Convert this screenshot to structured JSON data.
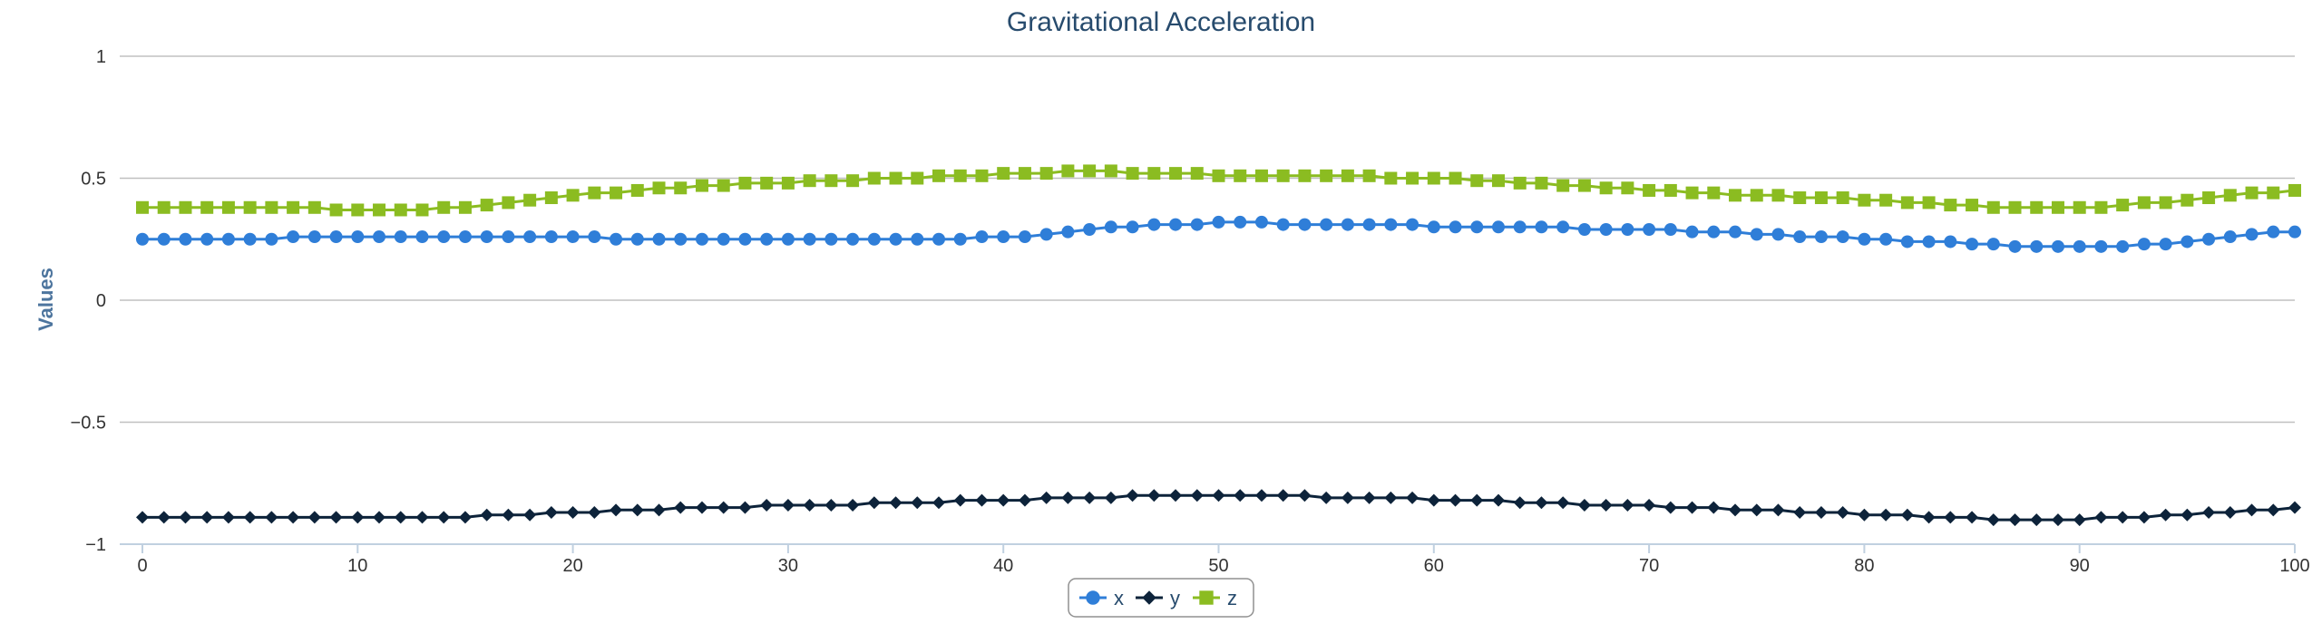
{
  "chart_data": {
    "type": "line",
    "title": "Gravitational Acceleration",
    "ylabel": "Values",
    "xlabel": "",
    "xlim": [
      0,
      100
    ],
    "ylim": [
      -1,
      1
    ],
    "yticks": [
      "1",
      "0.5",
      "0",
      "−0.5",
      "−1"
    ],
    "ytick_values": [
      1,
      0.5,
      0,
      -0.5,
      -1
    ],
    "xticks": [
      "0",
      "10",
      "20",
      "30",
      "40",
      "50",
      "60",
      "70",
      "80",
      "90",
      "100"
    ],
    "xtick_values": [
      0,
      10,
      20,
      30,
      40,
      50,
      60,
      70,
      80,
      90,
      100
    ],
    "grid": "horizontal",
    "legend_position": "bottom-center",
    "x": [
      0,
      1,
      2,
      3,
      4,
      5,
      6,
      7,
      8,
      9,
      10,
      11,
      12,
      13,
      14,
      15,
      16,
      17,
      18,
      19,
      20,
      21,
      22,
      23,
      24,
      25,
      26,
      27,
      28,
      29,
      30,
      31,
      32,
      33,
      34,
      35,
      36,
      37,
      38,
      39,
      40,
      41,
      42,
      43,
      44,
      45,
      46,
      47,
      48,
      49,
      50,
      51,
      52,
      53,
      54,
      55,
      56,
      57,
      58,
      59,
      60,
      61,
      62,
      63,
      64,
      65,
      66,
      67,
      68,
      69,
      70,
      71,
      72,
      73,
      74,
      75,
      76,
      77,
      78,
      79,
      80,
      81,
      82,
      83,
      84,
      85,
      86,
      87,
      88,
      89,
      90,
      91,
      92,
      93,
      94,
      95,
      96,
      97,
      98,
      99,
      100
    ],
    "series": [
      {
        "name": "x",
        "color": "#2f7ed8",
        "marker": "circle",
        "values": [
          0.25,
          0.25,
          0.25,
          0.25,
          0.25,
          0.25,
          0.25,
          0.26,
          0.26,
          0.26,
          0.26,
          0.26,
          0.26,
          0.26,
          0.26,
          0.26,
          0.26,
          0.26,
          0.26,
          0.26,
          0.26,
          0.26,
          0.25,
          0.25,
          0.25,
          0.25,
          0.25,
          0.25,
          0.25,
          0.25,
          0.25,
          0.25,
          0.25,
          0.25,
          0.25,
          0.25,
          0.25,
          0.25,
          0.25,
          0.26,
          0.26,
          0.26,
          0.27,
          0.28,
          0.29,
          0.3,
          0.3,
          0.31,
          0.31,
          0.31,
          0.32,
          0.32,
          0.32,
          0.31,
          0.31,
          0.31,
          0.31,
          0.31,
          0.31,
          0.31,
          0.3,
          0.3,
          0.3,
          0.3,
          0.3,
          0.3,
          0.3,
          0.29,
          0.29,
          0.29,
          0.29,
          0.29,
          0.28,
          0.28,
          0.28,
          0.27,
          0.27,
          0.26,
          0.26,
          0.26,
          0.25,
          0.25,
          0.24,
          0.24,
          0.24,
          0.23,
          0.23,
          0.22,
          0.22,
          0.22,
          0.22,
          0.22,
          0.22,
          0.23,
          0.23,
          0.24,
          0.25,
          0.26,
          0.27,
          0.28,
          0.28
        ]
      },
      {
        "name": "y",
        "color": "#0d233a",
        "marker": "diamond",
        "values": [
          -0.89,
          -0.89,
          -0.89,
          -0.89,
          -0.89,
          -0.89,
          -0.89,
          -0.89,
          -0.89,
          -0.89,
          -0.89,
          -0.89,
          -0.89,
          -0.89,
          -0.89,
          -0.89,
          -0.88,
          -0.88,
          -0.88,
          -0.87,
          -0.87,
          -0.87,
          -0.86,
          -0.86,
          -0.86,
          -0.85,
          -0.85,
          -0.85,
          -0.85,
          -0.84,
          -0.84,
          -0.84,
          -0.84,
          -0.84,
          -0.83,
          -0.83,
          -0.83,
          -0.83,
          -0.82,
          -0.82,
          -0.82,
          -0.82,
          -0.81,
          -0.81,
          -0.81,
          -0.81,
          -0.8,
          -0.8,
          -0.8,
          -0.8,
          -0.8,
          -0.8,
          -0.8,
          -0.8,
          -0.8,
          -0.81,
          -0.81,
          -0.81,
          -0.81,
          -0.81,
          -0.82,
          -0.82,
          -0.82,
          -0.82,
          -0.83,
          -0.83,
          -0.83,
          -0.84,
          -0.84,
          -0.84,
          -0.84,
          -0.85,
          -0.85,
          -0.85,
          -0.86,
          -0.86,
          -0.86,
          -0.87,
          -0.87,
          -0.87,
          -0.88,
          -0.88,
          -0.88,
          -0.89,
          -0.89,
          -0.89,
          -0.9,
          -0.9,
          -0.9,
          -0.9,
          -0.9,
          -0.89,
          -0.89,
          -0.89,
          -0.88,
          -0.88,
          -0.87,
          -0.87,
          -0.86,
          -0.86,
          -0.85
        ]
      },
      {
        "name": "z",
        "color": "#8bbc21",
        "marker": "square",
        "values": [
          0.38,
          0.38,
          0.38,
          0.38,
          0.38,
          0.38,
          0.38,
          0.38,
          0.38,
          0.37,
          0.37,
          0.37,
          0.37,
          0.37,
          0.38,
          0.38,
          0.39,
          0.4,
          0.41,
          0.42,
          0.43,
          0.44,
          0.44,
          0.45,
          0.46,
          0.46,
          0.47,
          0.47,
          0.48,
          0.48,
          0.48,
          0.49,
          0.49,
          0.49,
          0.5,
          0.5,
          0.5,
          0.51,
          0.51,
          0.51,
          0.52,
          0.52,
          0.52,
          0.53,
          0.53,
          0.53,
          0.52,
          0.52,
          0.52,
          0.52,
          0.51,
          0.51,
          0.51,
          0.51,
          0.51,
          0.51,
          0.51,
          0.51,
          0.5,
          0.5,
          0.5,
          0.5,
          0.49,
          0.49,
          0.48,
          0.48,
          0.47,
          0.47,
          0.46,
          0.46,
          0.45,
          0.45,
          0.44,
          0.44,
          0.43,
          0.43,
          0.43,
          0.42,
          0.42,
          0.42,
          0.41,
          0.41,
          0.4,
          0.4,
          0.39,
          0.39,
          0.38,
          0.38,
          0.38,
          0.38,
          0.38,
          0.38,
          0.39,
          0.4,
          0.4,
          0.41,
          0.42,
          0.43,
          0.44,
          0.44,
          0.45
        ]
      }
    ]
  }
}
